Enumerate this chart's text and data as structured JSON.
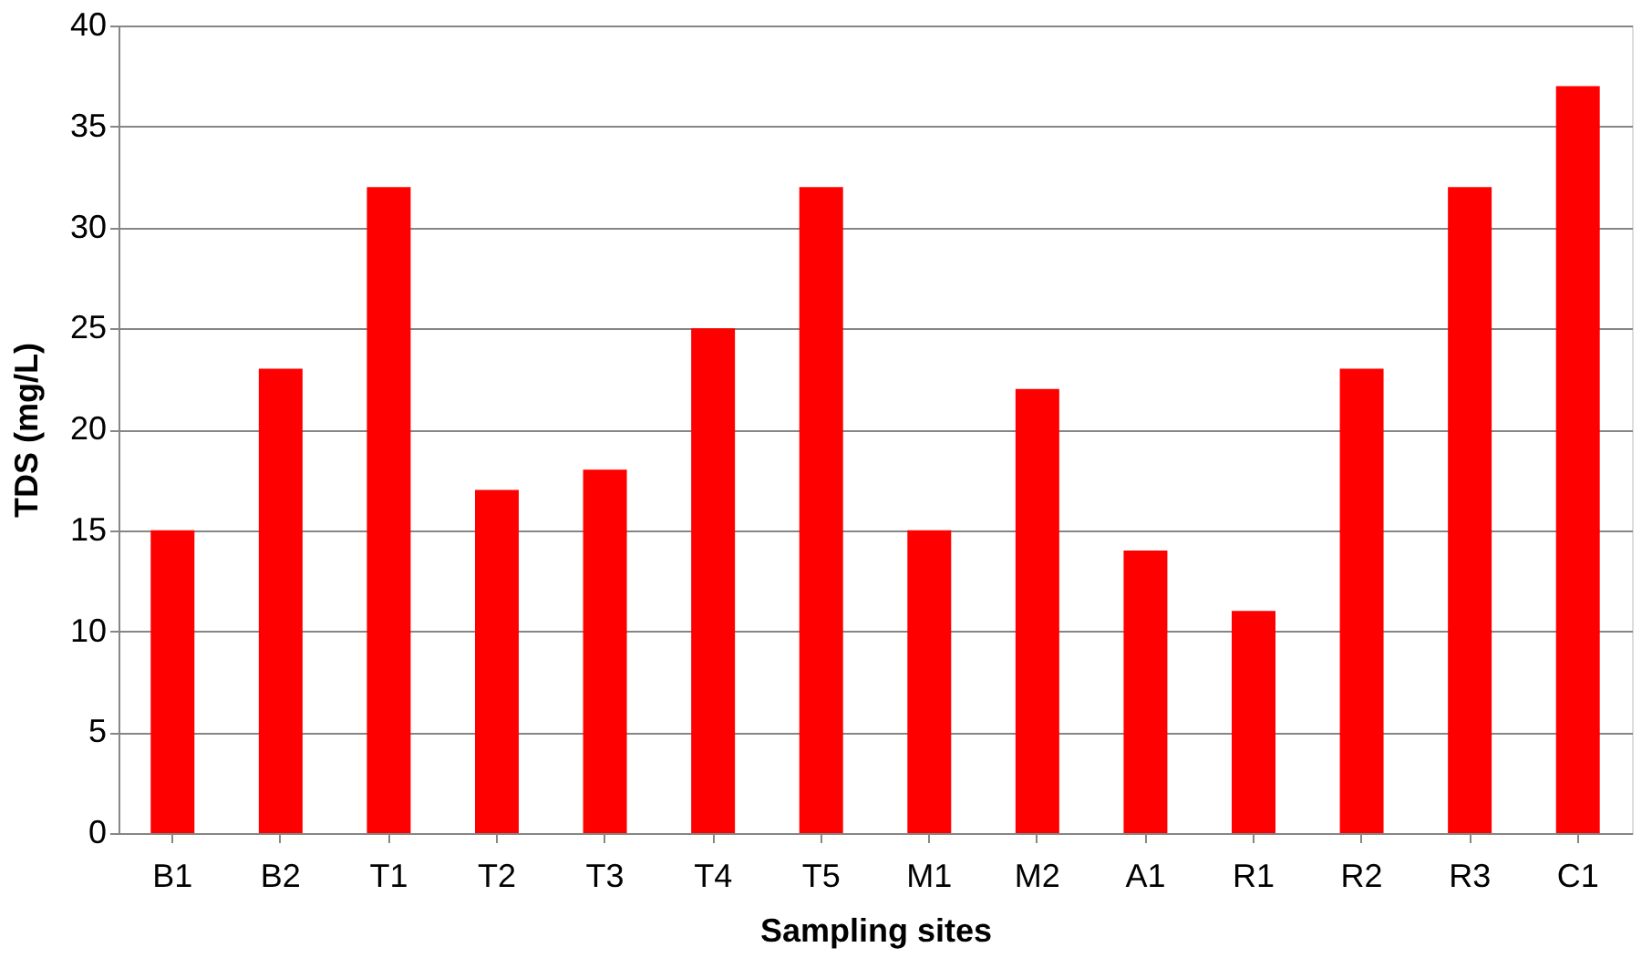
{
  "chart_data": {
    "type": "bar",
    "xlabel": "Sampling sites",
    "ylabel": "TDS (mg/L)",
    "categories": [
      "B1",
      "B2",
      "T1",
      "T2",
      "T3",
      "T4",
      "T5",
      "M1",
      "M2",
      "A1",
      "R1",
      "R2",
      "R3",
      "C1"
    ],
    "values": [
      15,
      23,
      32,
      17,
      18,
      25,
      32,
      15,
      22,
      14,
      11,
      23,
      32,
      37
    ],
    "color": "#ff0000",
    "ylim": [
      0,
      40
    ],
    "yticks": [
      0,
      5,
      10,
      15,
      20,
      25,
      30,
      35,
      40
    ],
    "grid": "y"
  }
}
